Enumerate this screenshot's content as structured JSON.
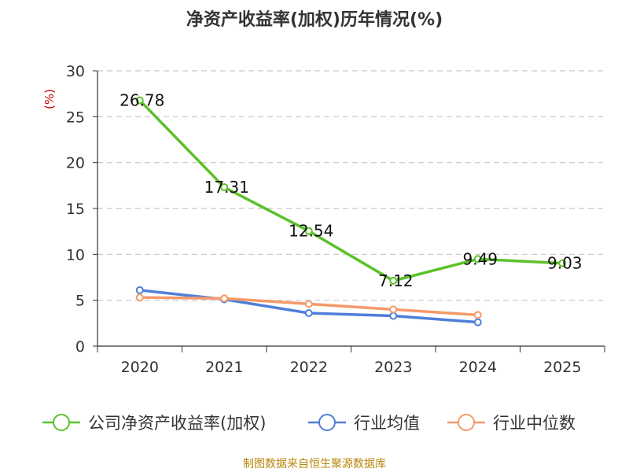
{
  "chart_data": {
    "type": "line",
    "title": "净资产收益率(加权)历年情况(%)",
    "ylabel": "(%)",
    "xlabel": "",
    "categories": [
      "2020",
      "2021",
      "2022",
      "2023",
      "2024",
      "2025"
    ],
    "ylim": [
      0,
      30
    ],
    "yticks": [
      0,
      5,
      10,
      15,
      20,
      25,
      30
    ],
    "grid": true,
    "legend_position": "bottom",
    "series": [
      {
        "name": "公司净资产收益率(加权)",
        "color": "#5cc12b",
        "values": [
          26.78,
          17.31,
          12.54,
          7.12,
          9.49,
          9.03
        ],
        "labels": [
          "26.78",
          "17.31",
          "12.54",
          "7.12",
          "9.49",
          "9.03"
        ]
      },
      {
        "name": "行业均值",
        "color": "#4f7fd9",
        "values": [
          6.1,
          5.1,
          3.6,
          3.3,
          2.6,
          null
        ]
      },
      {
        "name": "行业中位数",
        "color": "#f59a6a",
        "values": [
          5.3,
          5.2,
          4.6,
          4.0,
          3.4,
          null
        ]
      }
    ],
    "source": "制图数据来自恒生聚源数据库"
  }
}
